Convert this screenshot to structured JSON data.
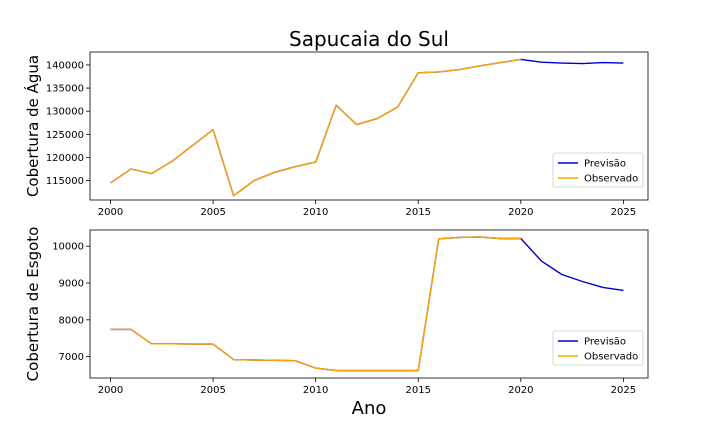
{
  "chart_data": {
    "title": "Sapucaia do Sul",
    "xlabel": "Ano",
    "x_ticks": [
      "2000",
      "2005",
      "2010",
      "2015",
      "2020",
      "2025"
    ],
    "xlim": [
      1999,
      2026.2
    ],
    "legend_position": "lower-right",
    "colors": {
      "Previsão": "#0000cc",
      "Observado": "#ffa500"
    },
    "panels": [
      {
        "type": "line",
        "ylabel": "Cobertura de Água",
        "ylim": [
          110800,
          142800
        ],
        "y_ticks": [
          "115000",
          "120000",
          "125000",
          "130000",
          "135000",
          "140000"
        ],
        "legend": [
          "Previsão",
          "Observado"
        ],
        "series": [
          {
            "name": "Previsão",
            "x": [
              2000,
              2001,
              2002,
              2003,
              2004,
              2005,
              2006,
              2007,
              2008,
              2009,
              2010,
              2011,
              2012,
              2013,
              2014,
              2015,
              2016,
              2017,
              2018,
              2019,
              2020,
              2021,
              2022,
              2023,
              2024,
              2025
            ],
            "y": [
              114500,
              117500,
              116500,
              119200,
              122600,
              126000,
              111700,
              115000,
              116800,
              118000,
              119000,
              131300,
              127100,
              128400,
              130900,
              138300,
              138500,
              139000,
              139800,
              140500,
              141200,
              140600,
              140400,
              140300,
              140500,
              140400
            ]
          },
          {
            "name": "Observado",
            "x": [
              2000,
              2001,
              2002,
              2003,
              2004,
              2005,
              2006,
              2007,
              2008,
              2009,
              2010,
              2011,
              2012,
              2013,
              2014,
              2015,
              2016,
              2017,
              2018,
              2019,
              2020
            ],
            "y": [
              114500,
              117500,
              116500,
              119200,
              122600,
              126000,
              111700,
              115000,
              116800,
              118000,
              119000,
              131300,
              127100,
              128400,
              130900,
              138300,
              138500,
              139000,
              139800,
              140500,
              141200
            ]
          }
        ]
      },
      {
        "type": "line",
        "ylabel": "Cobertura de Esgoto",
        "ylim": [
          6420,
          10440
        ],
        "y_ticks": [
          "7000",
          "8000",
          "9000",
          "10000"
        ],
        "legend": [
          "Previsão",
          "Observado"
        ],
        "series": [
          {
            "name": "Previsão",
            "x": [
              2000,
              2001,
              2002,
              2003,
              2004,
              2005,
              2006,
              2007,
              2008,
              2009,
              2010,
              2011,
              2012,
              2013,
              2014,
              2015,
              2016,
              2017,
              2018,
              2019,
              2020,
              2021,
              2022,
              2023,
              2024,
              2025
            ],
            "y": [
              7740,
              7740,
              7350,
              7350,
              7340,
              7340,
              6920,
              6910,
              6900,
              6890,
              6690,
              6620,
              6620,
              6620,
              6620,
              6620,
              10200,
              10240,
              10250,
              10210,
              10210,
              9600,
              9230,
              9040,
              8880,
              8800
            ]
          },
          {
            "name": "Observado",
            "x": [
              2000,
              2001,
              2002,
              2003,
              2004,
              2005,
              2006,
              2007,
              2008,
              2009,
              2010,
              2011,
              2012,
              2013,
              2014,
              2015,
              2016,
              2017,
              2018,
              2019,
              2020
            ],
            "y": [
              7740,
              7740,
              7350,
              7350,
              7340,
              7340,
              6920,
              6910,
              6900,
              6890,
              6690,
              6620,
              6620,
              6620,
              6620,
              6620,
              10200,
              10240,
              10250,
              10210,
              10210
            ]
          }
        ]
      }
    ]
  }
}
